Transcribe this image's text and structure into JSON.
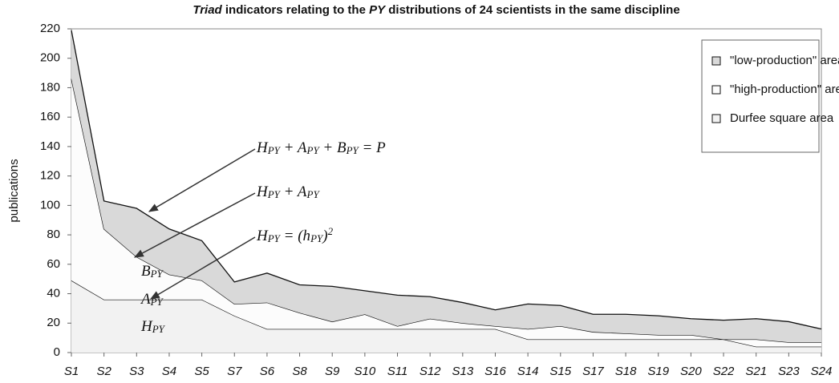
{
  "chart_data": {
    "type": "stacked_area",
    "title": [
      {
        "text": "Triad",
        "italic": true
      },
      {
        "text": " indicators relating to the "
      },
      {
        "text": "PY",
        "italic": true
      },
      {
        "text": " distributions of 24 scientists in the same discipline"
      }
    ],
    "y_label": "publications",
    "categories": [
      "S1",
      "S2",
      "S3",
      "S4",
      "S5",
      "S7",
      "S6",
      "S8",
      "S9",
      "S10",
      "S11",
      "S12",
      "S13",
      "S16",
      "S14",
      "S15",
      "S17",
      "S18",
      "S19",
      "S20",
      "S22",
      "S21",
      "S23",
      "S24"
    ],
    "series": [
      {
        "name": "Durfee square area",
        "color": "#f2f2f2",
        "values": [
          49,
          36,
          36,
          36,
          36,
          25,
          16,
          16,
          16,
          16,
          16,
          16,
          16,
          16,
          9,
          9,
          9,
          9,
          9,
          9,
          9,
          4,
          4,
          4
        ]
      },
      {
        "name": "\"high-production\" area",
        "color": "#fcfcfc",
        "values": [
          137,
          48,
          29,
          17,
          13,
          8,
          18,
          11,
          5,
          10,
          2,
          7,
          4,
          2,
          7,
          9,
          5,
          4,
          3,
          3,
          0,
          5,
          3,
          3
        ]
      },
      {
        "name": "\"low-production\" area",
        "color": "#d9d9d9",
        "values": [
          33,
          19,
          33,
          31,
          27,
          15,
          20,
          19,
          24,
          16,
          21,
          15,
          14,
          11,
          17,
          14,
          12,
          13,
          13,
          11,
          13,
          14,
          14,
          9
        ]
      }
    ],
    "ylim": [
      0,
      220
    ],
    "yticks": [
      0,
      20,
      40,
      60,
      80,
      100,
      120,
      140,
      160,
      180,
      200,
      220
    ],
    "legend": "upper right",
    "annotations": [
      {
        "parts": [
          {
            "text": "B"
          },
          {
            "text": "PY",
            "sub": true
          }
        ]
      },
      {
        "parts": [
          {
            "text": "A"
          },
          {
            "text": "PY",
            "sub": true
          }
        ]
      },
      {
        "parts": [
          {
            "text": "H"
          },
          {
            "text": "PY",
            "sub": true
          }
        ]
      },
      {
        "parts": [
          {
            "text": "H"
          },
          {
            "text": "PY",
            "sub": true
          },
          {
            "text": " + A"
          },
          {
            "text": "PY",
            "sub": true
          },
          {
            "text": " + B"
          },
          {
            "text": "PY",
            "sub": true
          },
          {
            "text": " = P"
          }
        ]
      },
      {
        "parts": [
          {
            "text": "H"
          },
          {
            "text": "PY",
            "sub": true
          },
          {
            "text": " + A"
          },
          {
            "text": "PY",
            "sub": true
          }
        ]
      },
      {
        "parts": [
          {
            "text": "H"
          },
          {
            "text": "PY",
            "sub": true
          },
          {
            "text": " = (h"
          },
          {
            "text": "PY",
            "sub": true
          },
          {
            "text": ")"
          },
          {
            "text": "2",
            "sup": true
          }
        ]
      }
    ]
  }
}
